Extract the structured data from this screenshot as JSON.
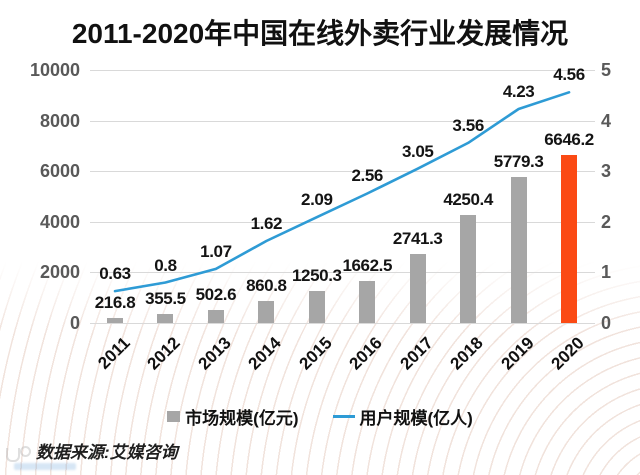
{
  "title": "2011-2020年中国在线外卖行业发展情况",
  "source": "数据来源:艾媒咨询",
  "legend": {
    "market": {
      "label": "市场规模(亿元)"
    },
    "users": {
      "label": "用户规模(亿人)"
    }
  },
  "colors": {
    "bar": "#A6A6A6",
    "bar_highlight": "#FB4A14",
    "line": "#2E9BD5",
    "axis_text": "#595959",
    "value_text": "#141414",
    "gridline": "#D9D9D9",
    "watermark_arc": "#C9927A"
  },
  "chart_data": {
    "type": "bar+line combo",
    "title": "2011-2020年中国在线外卖行业发展情况",
    "categories": [
      "2011",
      "2012",
      "2013",
      "2014",
      "2015",
      "2016",
      "2017",
      "2018",
      "2019",
      "2020"
    ],
    "series": [
      {
        "name": "市场规模(亿元)",
        "type": "bar",
        "axis": "left",
        "values": [
          216.8,
          355.5,
          502.6,
          860.8,
          1250.3,
          1662.5,
          2741.3,
          4250.4,
          5779.3,
          6646.2
        ],
        "labels": [
          "216.8",
          "355.5",
          "502.6",
          "860.8",
          "1250.3",
          "1662.5",
          "2741.3",
          "4250.4",
          "5779.3",
          "6646.2"
        ],
        "color": "#A6A6A6",
        "highlight_index": 9,
        "highlight_color": "#FB4A14"
      },
      {
        "name": "用户规模(亿人)",
        "type": "line",
        "axis": "right",
        "values": [
          0.63,
          0.8,
          1.07,
          1.62,
          2.09,
          2.56,
          3.05,
          3.56,
          4.23,
          4.56
        ],
        "labels": [
          "0.63",
          "0.8",
          "1.07",
          "1.62",
          "2.09",
          "2.56",
          "3.05",
          "3.56",
          "4.23",
          "4.56"
        ],
        "color": "#2E9BD5"
      }
    ],
    "left_axis": {
      "min": 0,
      "max": 10000,
      "tick_labels": [
        "10000",
        "8000",
        "6000",
        "4000",
        "2000",
        "0"
      ],
      "tick_values": [
        10000,
        8000,
        6000,
        4000,
        2000,
        0
      ]
    },
    "right_axis": {
      "min": 0,
      "max": 5,
      "tick_labels": [
        "5",
        "4",
        "3",
        "2",
        "1",
        "0"
      ],
      "tick_values": [
        5,
        4,
        3,
        2,
        1,
        0
      ]
    },
    "grid": "horizontal",
    "legend_position": "bottom",
    "source_note": "数据来源:艾媒咨询"
  }
}
